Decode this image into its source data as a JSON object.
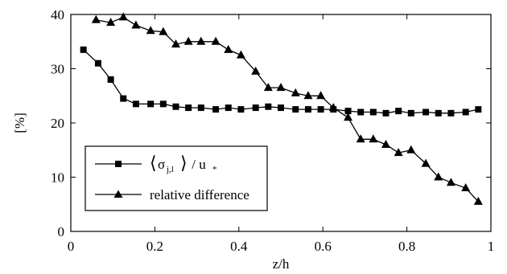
{
  "chart_data": {
    "type": "line",
    "xlabel": "z/h",
    "ylabel": "[%]",
    "xlim": [
      0,
      1
    ],
    "ylim": [
      0,
      40
    ],
    "xticks": [
      0,
      0.2,
      0.4,
      0.6,
      0.8,
      1
    ],
    "xtick_labels": [
      "0",
      "0.2",
      "0.4",
      "0.6",
      "0.8",
      "1"
    ],
    "yticks": [
      0,
      10,
      20,
      30,
      40
    ],
    "ytick_labels": [
      "0",
      "10",
      "20",
      "30",
      "40"
    ],
    "grid": false,
    "legend_position": "bottom-left",
    "series": [
      {
        "name": "⟨σj,l⟩ / u*",
        "label_parts": {
          "sigma": "σ",
          "sub": "j,l",
          "rest": " / u",
          "star": "*"
        },
        "marker": "square",
        "x": [
          0.03,
          0.065,
          0.095,
          0.125,
          0.155,
          0.19,
          0.22,
          0.25,
          0.28,
          0.31,
          0.345,
          0.375,
          0.405,
          0.44,
          0.47,
          0.5,
          0.535,
          0.565,
          0.595,
          0.625,
          0.66,
          0.69,
          0.72,
          0.75,
          0.78,
          0.81,
          0.845,
          0.875,
          0.905,
          0.94,
          0.97
        ],
        "y": [
          33.5,
          31,
          28,
          24.5,
          23.5,
          23.5,
          23.5,
          23,
          22.8,
          22.8,
          22.5,
          22.8,
          22.5,
          22.8,
          23,
          22.8,
          22.5,
          22.5,
          22.5,
          22.5,
          22.2,
          22,
          22,
          21.8,
          22.2,
          21.8,
          22,
          21.8,
          21.8,
          22,
          22.5
        ]
      },
      {
        "name": "relative difference",
        "marker": "triangle",
        "x": [
          0.06,
          0.095,
          0.125,
          0.155,
          0.19,
          0.22,
          0.25,
          0.28,
          0.31,
          0.345,
          0.375,
          0.405,
          0.44,
          0.47,
          0.5,
          0.535,
          0.565,
          0.595,
          0.625,
          0.66,
          0.69,
          0.72,
          0.75,
          0.78,
          0.81,
          0.845,
          0.875,
          0.905,
          0.94,
          0.97
        ],
        "y": [
          39,
          38.5,
          39.5,
          38,
          37,
          36.8,
          34.5,
          35,
          35,
          35,
          33.5,
          32.5,
          29.5,
          26.5,
          26.5,
          25.5,
          25,
          25,
          22.8,
          21,
          17,
          17,
          16,
          14.5,
          15,
          12.5,
          10,
          9,
          8,
          5.5
        ]
      }
    ]
  }
}
